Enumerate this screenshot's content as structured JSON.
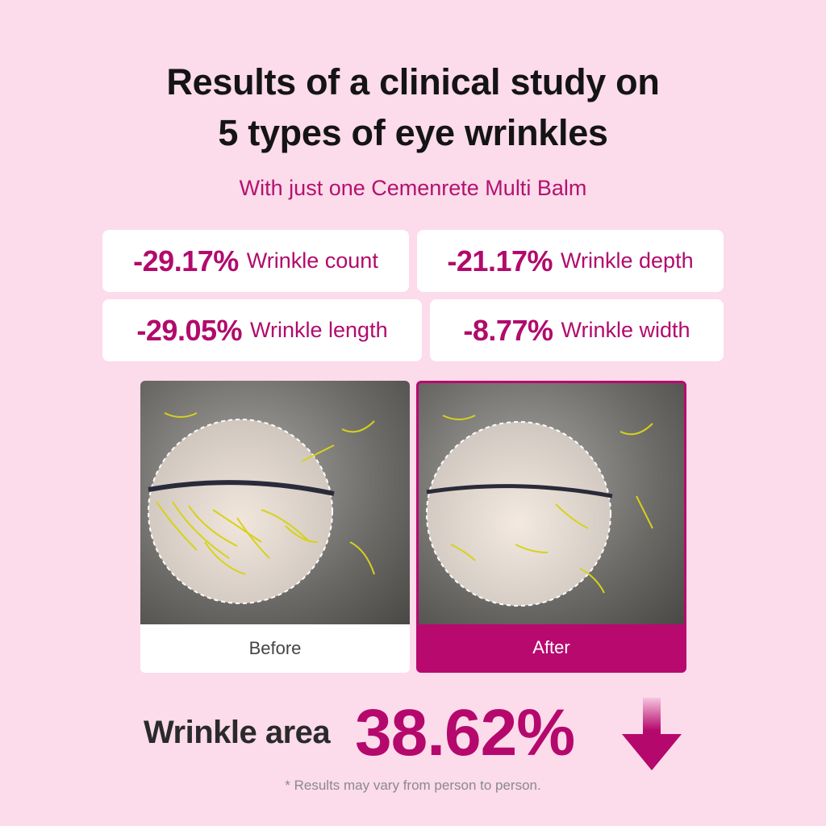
{
  "title": {
    "line1": "Results of a clinical study on",
    "line2": "5 types of eye wrinkles"
  },
  "subtitle": "With just one Cemenrete Multi Balm",
  "stats": [
    {
      "value": "-29.17%",
      "label": "Wrinkle count"
    },
    {
      "value": "-21.17%",
      "label": "Wrinkle depth"
    },
    {
      "value": "-29.05%",
      "label": "Wrinkle length"
    },
    {
      "value": "-8.77%",
      "label": "Wrinkle width"
    }
  ],
  "comparison": {
    "before_label": "Before",
    "after_label": "After"
  },
  "result": {
    "label": "Wrinkle area",
    "value": "38.62%",
    "direction_icon": "arrow-down-icon"
  },
  "footnote": "* Results may vary from person to person.",
  "colors": {
    "background": "#fcdbea",
    "accent": "#b5086d",
    "text": "#141414"
  }
}
